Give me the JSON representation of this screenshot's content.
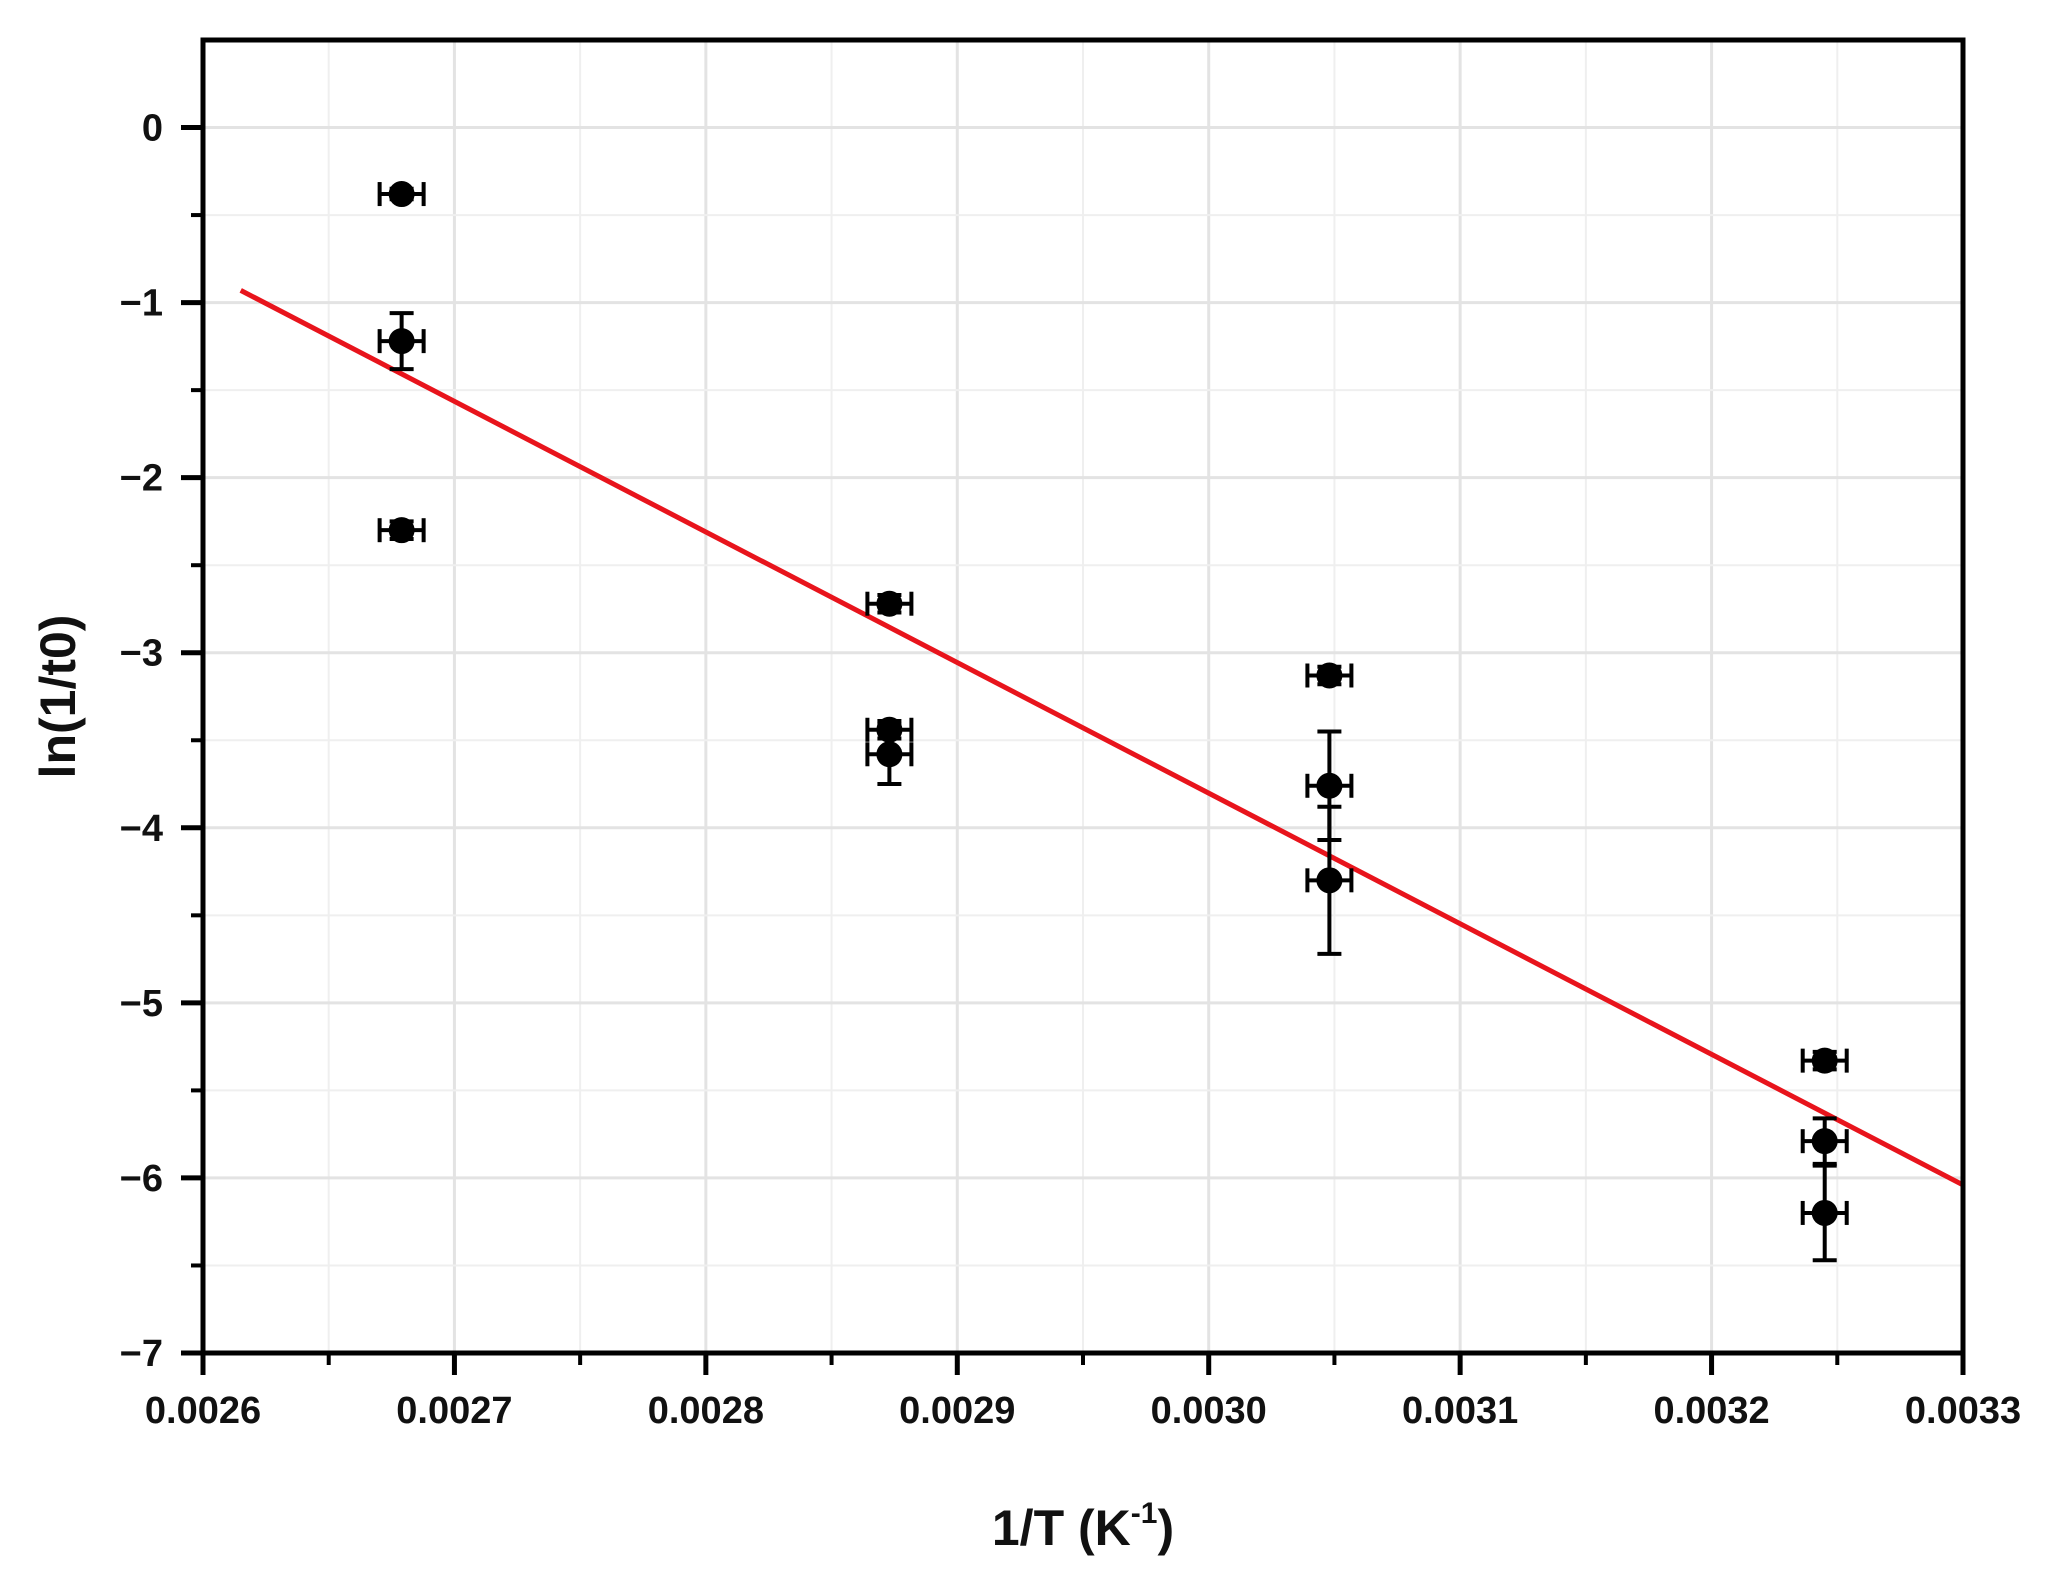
{
  "chart_data": {
    "type": "scatter",
    "xlabel_main": "1/T (K",
    "xlabel_sup": "-1",
    "xlabel_close": ")",
    "ylabel": "ln(1/t0)",
    "xlim": [
      0.0026,
      0.0033
    ],
    "ylim": [
      -7,
      0.5
    ],
    "x_ticks": [
      "0.0026",
      "0.0027",
      "0.0028",
      "0.0029",
      "0.0030",
      "0.0031",
      "0.0032",
      "0.0033"
    ],
    "y_ticks": [
      "0",
      "−1",
      "−2",
      "−3",
      "−4",
      "−5",
      "−6",
      "−7"
    ],
    "grid": true,
    "colors": {
      "points": "#000000",
      "fit": "#e8141c",
      "grid": "#e3e3e3",
      "axis": "#000000"
    },
    "series": [
      {
        "values": [
          {
            "x": 0.002679,
            "y": -0.38,
            "xerr": 5e-06,
            "yerr": 0.03
          },
          {
            "x": 0.002679,
            "y": -1.22,
            "xerr": 5e-06,
            "yerr": 0.16
          },
          {
            "x": 0.002679,
            "y": -2.3,
            "xerr": 5e-06,
            "yerr": 0.05
          },
          {
            "x": 0.002873,
            "y": -2.72,
            "xerr": 5e-06,
            "yerr": 0.05
          },
          {
            "x": 0.002873,
            "y": -3.44,
            "xerr": 5e-06,
            "yerr": 0.05
          },
          {
            "x": 0.002873,
            "y": -3.58,
            "xerr": 5e-06,
            "yerr": 0.17
          },
          {
            "x": 0.003048,
            "y": -3.13,
            "xerr": 6e-06,
            "yerr": 0.05
          },
          {
            "x": 0.003048,
            "y": -3.76,
            "xerr": 6e-06,
            "yerr": 0.31
          },
          {
            "x": 0.003048,
            "y": -4.3,
            "xerr": 6e-06,
            "yerr": 0.42
          },
          {
            "x": 0.003245,
            "y": -5.33,
            "xerr": 6e-06,
            "yerr": 0.05
          },
          {
            "x": 0.003245,
            "y": -5.79,
            "xerr": 6e-06,
            "yerr": 0.13
          },
          {
            "x": 0.003245,
            "y": -6.2,
            "xerr": 6e-06,
            "yerr": 0.27
          }
        ]
      }
    ],
    "fit_line": {
      "x": [
        0.002615,
        0.0033
      ],
      "y": [
        -0.93,
        -6.04
      ]
    }
  }
}
